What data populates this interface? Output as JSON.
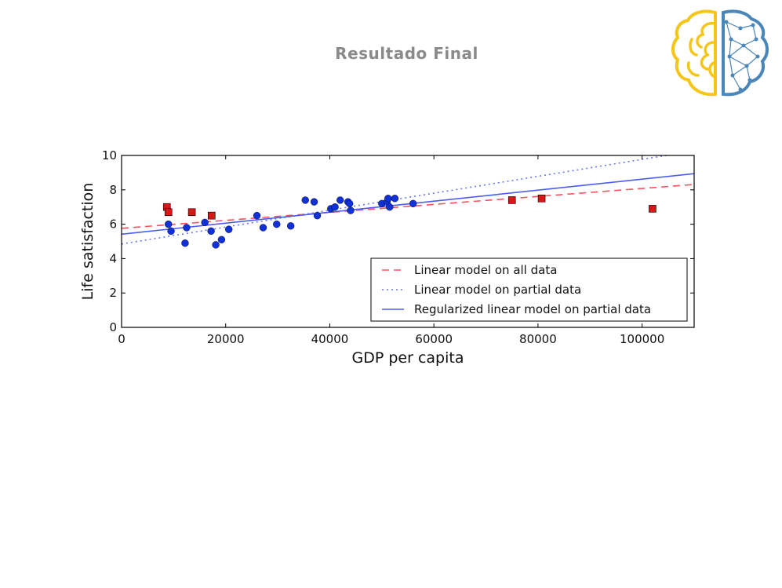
{
  "slide": {
    "title": "Resultado Final"
  },
  "logo": {
    "icon": "brain-logo-icon",
    "left_color": "#f5c518",
    "right_color": "#4a86b8"
  },
  "chart_data": {
    "type": "scatter",
    "xlabel": "GDP per capita",
    "ylabel": "Life satisfaction",
    "xlim": [
      0,
      110000
    ],
    "ylim": [
      0,
      10
    ],
    "xticks": [
      0,
      20000,
      40000,
      60000,
      80000,
      100000
    ],
    "yticks": [
      0,
      2,
      4,
      6,
      8,
      10
    ],
    "grid": false,
    "legend_position": "lower-right",
    "series": [
      {
        "kind": "points",
        "marker": "circle",
        "color": "#1030d8",
        "points": [
          [
            9000,
            6.0
          ],
          [
            9500,
            5.6
          ],
          [
            12200,
            4.9
          ],
          [
            12500,
            5.8
          ],
          [
            16000,
            6.1
          ],
          [
            17200,
            5.6
          ],
          [
            18100,
            4.8
          ],
          [
            19200,
            5.1
          ],
          [
            20600,
            5.7
          ],
          [
            26000,
            6.5
          ],
          [
            27200,
            5.8
          ],
          [
            29800,
            6.0
          ],
          [
            32500,
            5.9
          ],
          [
            35300,
            7.4
          ],
          [
            37000,
            7.3
          ],
          [
            37600,
            6.5
          ],
          [
            40200,
            6.9
          ],
          [
            41000,
            7.0
          ],
          [
            42000,
            7.4
          ],
          [
            43500,
            7.3
          ],
          [
            43800,
            7.2
          ],
          [
            44000,
            6.8
          ],
          [
            50000,
            7.2
          ],
          [
            51000,
            7.3
          ],
          [
            51200,
            7.5
          ],
          [
            51500,
            7.0
          ],
          [
            52500,
            7.5
          ],
          [
            56000,
            7.2
          ]
        ]
      },
      {
        "kind": "points",
        "marker": "square",
        "color": "#d81818",
        "points": [
          [
            8700,
            7.0
          ],
          [
            9000,
            6.7
          ],
          [
            13500,
            6.7
          ],
          [
            17300,
            6.5
          ],
          [
            75000,
            7.4
          ],
          [
            80700,
            7.5
          ],
          [
            102000,
            6.9
          ]
        ]
      },
      {
        "kind": "line",
        "name": "Linear model on all data",
        "style": "dashed",
        "color": "#ff5060",
        "intercept": 5.76,
        "slope": 2.32e-05
      },
      {
        "kind": "line",
        "name": "Linear model on partial data",
        "style": "dotted",
        "color": "#6677ee",
        "intercept": 4.85,
        "slope": 4.92e-05
      },
      {
        "kind": "line",
        "name": "Regularized linear model on partial data",
        "style": "solid",
        "color": "#4c5cf0",
        "intercept": 5.42,
        "slope": 3.2e-05
      }
    ]
  }
}
